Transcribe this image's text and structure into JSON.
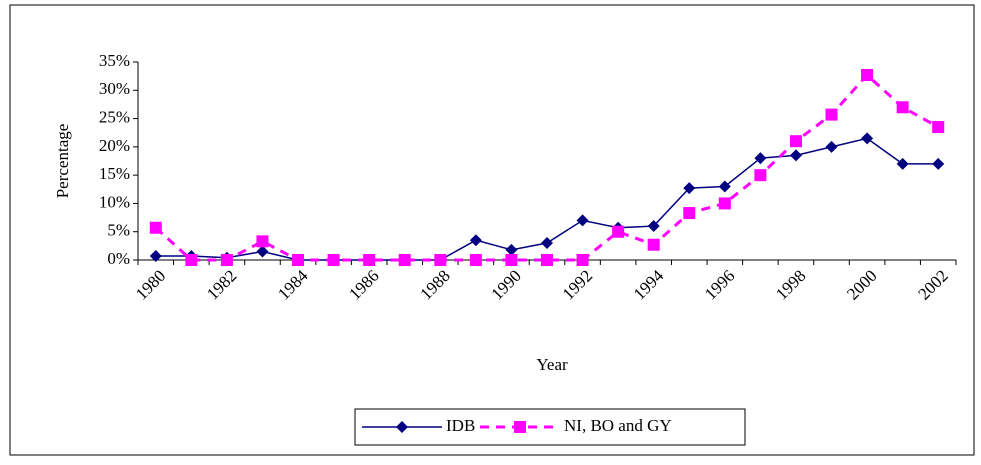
{
  "chart_data": {
    "type": "line",
    "x_label": "Year",
    "y_label": "Percentage",
    "categories": [
      "1980",
      null,
      "1982",
      null,
      "1984",
      null,
      "1986",
      null,
      "1988",
      null,
      "1990",
      null,
      "1992",
      null,
      "1994",
      null,
      "1996",
      null,
      "1998",
      null,
      "2000",
      null,
      "2002"
    ],
    "series": [
      {
        "name": "IDB",
        "color": "#000080",
        "marker": "diamond",
        "dash": false,
        "values": [
          0.7,
          0.7,
          0.4,
          1.5,
          0,
          0,
          0,
          0,
          0,
          3.5,
          1.8,
          3,
          7,
          5.7,
          6,
          12.7,
          13,
          18,
          18.5,
          20,
          21.5,
          17,
          17
        ]
      },
      {
        "name": "NI, BO and GY",
        "color": "#ff00ff",
        "marker": "square",
        "dash": true,
        "values": [
          5.7,
          0,
          0,
          3.3,
          0,
          0,
          0,
          0,
          0,
          0,
          0,
          0,
          0,
          5,
          2.7,
          8.3,
          10,
          15,
          21,
          25.7,
          32.7,
          27,
          23.5
        ]
      }
    ],
    "ylim": [
      0,
      35
    ],
    "yticks": [
      {
        "value": 0,
        "label": "0%"
      },
      {
        "value": 5,
        "label": "5%"
      },
      {
        "value": 10,
        "label": "10%"
      },
      {
        "value": 15,
        "label": "15%"
      },
      {
        "value": 20,
        "label": "20%"
      },
      {
        "value": 25,
        "label": "25%"
      },
      {
        "value": 30,
        "label": "30%"
      },
      {
        "value": 35,
        "label": "35%"
      }
    ],
    "grid": false,
    "legend": "bottom"
  }
}
